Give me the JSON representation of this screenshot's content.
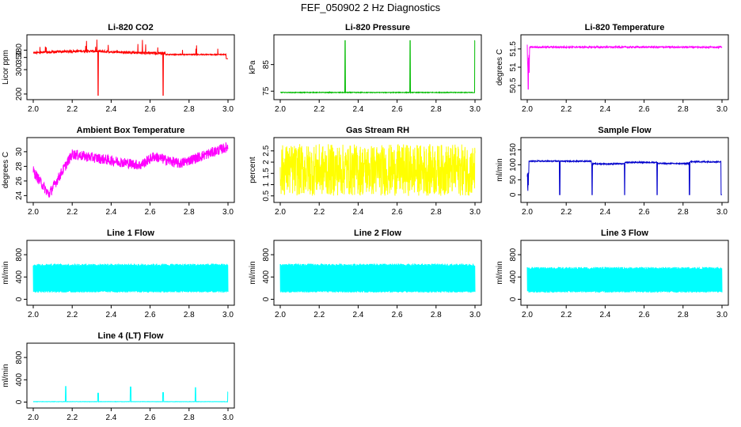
{
  "main_title": "FEF_050902  2 Hz Diagnostics",
  "chart_data": [
    {
      "type": "line",
      "title": "Li-820 CO2",
      "ylabel": "Licor ppm",
      "color": "#ff0000",
      "xlim": [
        2.0,
        3.0
      ],
      "ylim": [
        190,
        430
      ],
      "xticks": [
        "2.0",
        "2.2",
        "2.4",
        "2.6",
        "2.8",
        "3.0"
      ],
      "yticks": [
        {
          "v": 200,
          "label": "200"
        },
        {
          "v": 300,
          "label": "300"
        },
        {
          "v": 350,
          "label": "350"
        },
        {
          "v": 380,
          "label": "380"
        }
      ],
      "series": [
        {
          "name": "CO2",
          "pattern": "co2"
        }
      ]
    },
    {
      "type": "line",
      "title": "Li-820 Pressure",
      "ylabel": "kPa",
      "color": "#00bb00",
      "xlim": [
        2.0,
        3.0
      ],
      "ylim": [
        73,
        95
      ],
      "xticks": [
        "2.0",
        "2.2",
        "2.4",
        "2.6",
        "2.8",
        "3.0"
      ],
      "yticks": [
        {
          "v": 75,
          "label": "75"
        },
        {
          "v": 85,
          "label": "85"
        }
      ],
      "series": [
        {
          "name": "Pressure",
          "pattern": "pressure"
        }
      ]
    },
    {
      "type": "line",
      "title": "Li-820 Temperature",
      "ylabel": "degrees C",
      "color": "#ff00ff",
      "xlim": [
        2.0,
        3.0
      ],
      "ylim": [
        50.2,
        51.8
      ],
      "xticks": [
        "2.0",
        "2.2",
        "2.4",
        "2.6",
        "2.8",
        "3.0"
      ],
      "yticks": [
        {
          "v": 50.5,
          "label": "50.5"
        },
        {
          "v": 51,
          "label": "51"
        },
        {
          "v": 51.5,
          "label": "51.5"
        }
      ],
      "series": [
        {
          "name": "Temperature",
          "pattern": "temp"
        }
      ]
    },
    {
      "type": "line",
      "title": "Ambient Box Temperature",
      "ylabel": "degrees C",
      "color": "#ff00ff",
      "xlim": [
        2.0,
        3.0
      ],
      "ylim": [
        23.5,
        31.5
      ],
      "xticks": [
        "2.0",
        "2.2",
        "2.4",
        "2.6",
        "2.8",
        "3.0"
      ],
      "yticks": [
        {
          "v": 24,
          "label": "24"
        },
        {
          "v": 26,
          "label": "26"
        },
        {
          "v": 28,
          "label": "28"
        },
        {
          "v": 30,
          "label": "30"
        }
      ],
      "series": [
        {
          "name": "Ambient",
          "pattern": "ambient"
        }
      ]
    },
    {
      "type": "line",
      "title": "Gas Stream RH",
      "ylabel": "percent",
      "color": "#ffff00",
      "xlim": [
        2.0,
        3.0
      ],
      "ylim": [
        0.35,
        2.95
      ],
      "xticks": [
        "2.0",
        "2.2",
        "2.4",
        "2.6",
        "2.8",
        "3.0"
      ],
      "yticks": [
        {
          "v": 0.5,
          "label": "0.5"
        },
        {
          "v": 1,
          "label": "1"
        },
        {
          "v": 1.5,
          "label": "1.5"
        },
        {
          "v": 2,
          "label": "2"
        },
        {
          "v": 2.5,
          "label": "2.5"
        }
      ],
      "series": [
        {
          "name": "RH",
          "pattern": "rh"
        }
      ]
    },
    {
      "type": "line",
      "title": "Sample Flow",
      "ylabel": "ml/min",
      "color": "#0000cc",
      "xlim": [
        2.0,
        3.0
      ],
      "ylim": [
        -15,
        180
      ],
      "xticks": [
        "2.0",
        "2.2",
        "2.4",
        "2.6",
        "2.8",
        "3.0"
      ],
      "yticks": [
        {
          "v": 0,
          "label": "0"
        },
        {
          "v": 50,
          "label": "50"
        },
        {
          "v": 100,
          "label": "100"
        },
        {
          "v": 150,
          "label": "150"
        }
      ],
      "series": [
        {
          "name": "Sample Flow",
          "pattern": "sample"
        }
      ]
    },
    {
      "type": "line",
      "title": "Line 1 Flow",
      "ylabel": "ml/min",
      "color": "#00ffff",
      "xlim": [
        2.0,
        3.0
      ],
      "ylim": [
        -50,
        1000
      ],
      "xticks": [
        "2.0",
        "2.2",
        "2.4",
        "2.6",
        "2.8",
        "3.0"
      ],
      "yticks": [
        {
          "v": 0,
          "label": "0"
        },
        {
          "v": 400,
          "label": "400"
        },
        {
          "v": 800,
          "label": "800"
        }
      ],
      "series": [
        {
          "name": "Line 1",
          "pattern": "line1"
        }
      ]
    },
    {
      "type": "line",
      "title": "Line 2 Flow",
      "ylabel": "ml/min",
      "color": "#00ffff",
      "xlim": [
        2.0,
        3.0
      ],
      "ylim": [
        -50,
        1000
      ],
      "xticks": [
        "2.0",
        "2.2",
        "2.4",
        "2.6",
        "2.8",
        "3.0"
      ],
      "yticks": [
        {
          "v": 0,
          "label": "0"
        },
        {
          "v": 400,
          "label": "400"
        },
        {
          "v": 800,
          "label": "800"
        }
      ],
      "series": [
        {
          "name": "Line 2",
          "pattern": "line2"
        }
      ]
    },
    {
      "type": "line",
      "title": "Line 3 Flow",
      "ylabel": "ml/min",
      "color": "#00ffff",
      "xlim": [
        2.0,
        3.0
      ],
      "ylim": [
        -50,
        1000
      ],
      "xticks": [
        "2.0",
        "2.2",
        "2.4",
        "2.6",
        "2.8",
        "3.0"
      ],
      "yticks": [
        {
          "v": 0,
          "label": "0"
        },
        {
          "v": 400,
          "label": "400"
        },
        {
          "v": 800,
          "label": "800"
        }
      ],
      "series": [
        {
          "name": "Line 3",
          "pattern": "line3"
        }
      ]
    },
    {
      "type": "line",
      "title": "Line 4 (LT) Flow",
      "ylabel": "ml/min",
      "color": "#00ffff",
      "xlim": [
        2.0,
        3.0
      ],
      "ylim": [
        -50,
        1000
      ],
      "xticks": [
        "2.0",
        "2.2",
        "2.4",
        "2.6",
        "2.8",
        "3.0"
      ],
      "yticks": [
        {
          "v": 0,
          "label": "0"
        },
        {
          "v": 400,
          "label": "400"
        },
        {
          "v": 800,
          "label": "800"
        }
      ],
      "series": [
        {
          "name": "Line 4",
          "pattern": "line4"
        }
      ]
    }
  ]
}
